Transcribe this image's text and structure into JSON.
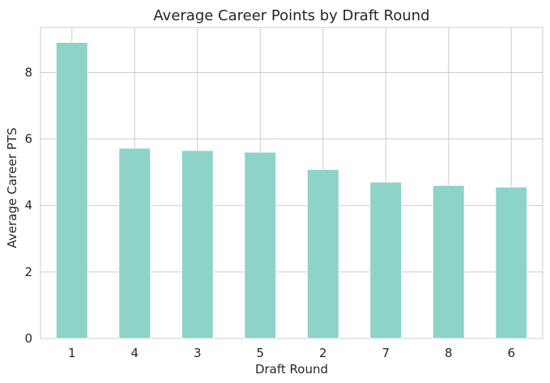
{
  "chart_data": {
    "type": "bar",
    "title": "Average Career Points by Draft Round",
    "xlabel": "Draft Round",
    "ylabel": "Average Career PTS",
    "categories": [
      "1",
      "4",
      "3",
      "5",
      "2",
      "7",
      "8",
      "6"
    ],
    "values": [
      8.9,
      5.72,
      5.65,
      5.6,
      5.08,
      4.7,
      4.6,
      4.55
    ],
    "ylim": [
      0,
      9.35
    ],
    "yticks": [
      "0",
      "2",
      "4",
      "6",
      "8"
    ],
    "grid": true,
    "legend": "none",
    "colors": {
      "bar": "#8dd3c7",
      "grid": "#cccccc",
      "text": "#262626"
    }
  }
}
